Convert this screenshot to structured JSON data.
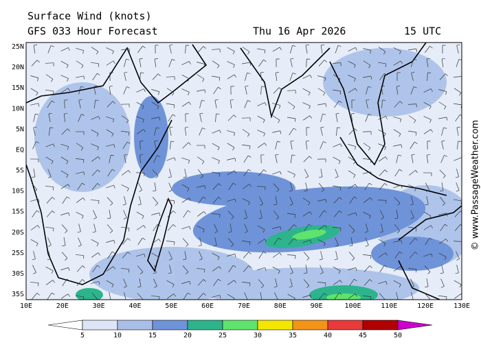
{
  "header": {
    "title": "Surface Wind (knots)",
    "subtitle": "GFS 033 Hour Forecast",
    "date": "Thu 16 Apr 2026",
    "time": "15 UTC"
  },
  "axes": {
    "lat": [
      "25N",
      "20N",
      "15N",
      "10N",
      "5N",
      "EQ",
      "5S",
      "10S",
      "15S",
      "20S",
      "25S",
      "30S",
      "35S"
    ],
    "lon": [
      "10E",
      "20E",
      "30E",
      "40E",
      "50E",
      "60E",
      "70E",
      "80E",
      "90E",
      "100E",
      "110E",
      "120E",
      "130E"
    ]
  },
  "colorbar": {
    "labels": [
      "5",
      "10",
      "15",
      "20",
      "25",
      "30",
      "35",
      "40",
      "45",
      "50"
    ],
    "colors": [
      "#ffffff",
      "#dde5f6",
      "#a9bfe8",
      "#6f93d8",
      "#2db48c",
      "#5ee46c",
      "#f3e600",
      "#f29418",
      "#e83a3a",
      "#b00000",
      "#cc00cc"
    ]
  },
  "credit": "© www.PassageWeather.com"
}
